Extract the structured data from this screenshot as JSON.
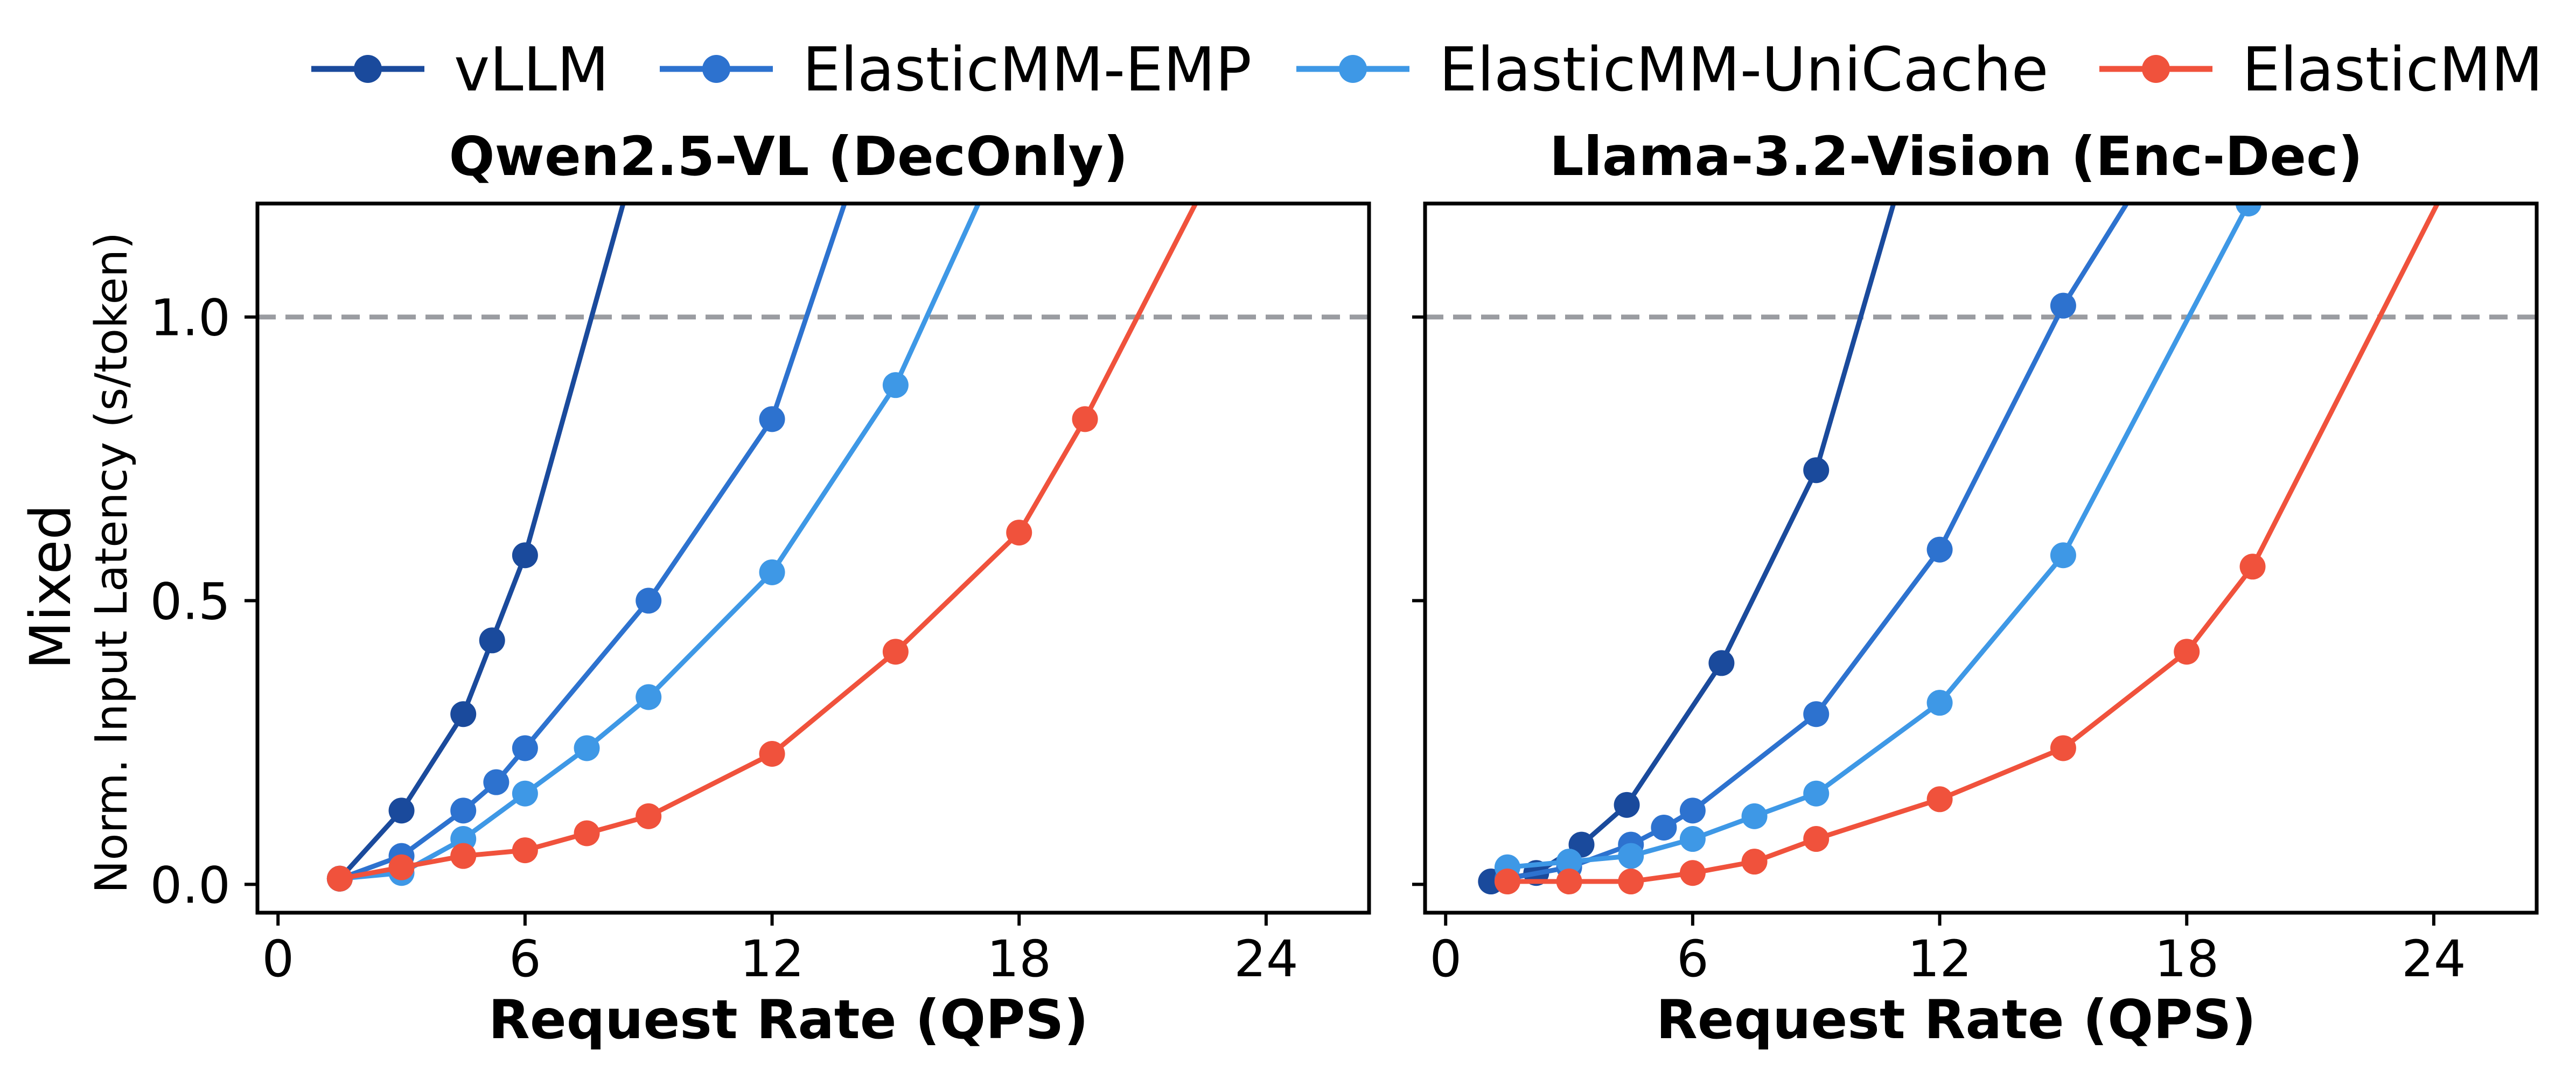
{
  "legend": [
    {
      "name": "vLLM",
      "color": "#1a4a9c"
    },
    {
      "name": "ElasticMM-EMP",
      "color": "#2d72cf"
    },
    {
      "name": "ElasticMM-UniCache",
      "color": "#3e98e6"
    },
    {
      "name": "ElasticMM",
      "color": "#f0523c"
    }
  ],
  "ylabel": {
    "main": "Mixed",
    "sub": "Norm. Input Latency (s/token)"
  },
  "chart_data": [
    {
      "type": "line",
      "title": "Qwen2.5-VL (DecOnly)",
      "xlabel": "Request Rate (QPS)",
      "ylabel": "Norm. Input Latency (s/token)",
      "xlim": [
        -0.5,
        26.5
      ],
      "ylim": [
        -0.05,
        1.2
      ],
      "xticks": [
        0,
        6,
        12,
        18,
        24
      ],
      "yticks": [
        0.0,
        0.5,
        1.0
      ],
      "ytick_labels": [
        "0.0",
        "0.5",
        "1.0"
      ],
      "reference_line": 1.0,
      "series": [
        {
          "name": "vLLM",
          "color": "#1a4a9c",
          "x": [
            1.5,
            3,
            4.5,
            5.2,
            6
          ],
          "y": [
            0.01,
            0.13,
            0.3,
            0.43,
            0.58
          ],
          "extend_to": [
            8.5,
            1.23
          ]
        },
        {
          "name": "ElasticMM-EMP",
          "color": "#2d72cf",
          "x": [
            1.5,
            3,
            4.5,
            5.3,
            6,
            9,
            12
          ],
          "y": [
            0.01,
            0.05,
            0.13,
            0.18,
            0.24,
            0.5,
            0.82
          ],
          "extend_to": [
            13.9,
            1.23
          ]
        },
        {
          "name": "ElasticMM-UniCache",
          "color": "#3e98e6",
          "x": [
            1.5,
            3,
            4.5,
            6,
            7.5,
            9,
            12,
            15
          ],
          "y": [
            0.01,
            0.02,
            0.08,
            0.16,
            0.24,
            0.33,
            0.55,
            0.88
          ],
          "extend_to": [
            17.2,
            1.23
          ]
        },
        {
          "name": "ElasticMM",
          "color": "#f0523c",
          "x": [
            1.5,
            3,
            4.5,
            6,
            7.5,
            9,
            12,
            15,
            18,
            19.6
          ],
          "y": [
            0.01,
            0.03,
            0.05,
            0.06,
            0.09,
            0.12,
            0.23,
            0.41,
            0.62,
            0.82
          ],
          "extend_to": [
            22.5,
            1.23
          ]
        }
      ]
    },
    {
      "type": "line",
      "title": "Llama-3.2-Vision (Enc-Dec)",
      "xlabel": "Request Rate (QPS)",
      "ylabel": "",
      "xlim": [
        -0.5,
        26.5
      ],
      "ylim": [
        -0.05,
        1.2
      ],
      "xticks": [
        0,
        6,
        12,
        18,
        24
      ],
      "yticks": [
        0.0,
        0.5,
        1.0
      ],
      "ytick_labels": [
        "",
        "",
        ""
      ],
      "reference_line": 1.0,
      "series": [
        {
          "name": "vLLM",
          "color": "#1a4a9c",
          "x": [
            1.1,
            2.2,
            3.3,
            4.4,
            6.7,
            9
          ],
          "y": [
            0.005,
            0.02,
            0.07,
            0.14,
            0.39,
            0.73
          ],
          "extend_to": [
            11.0,
            1.23
          ]
        },
        {
          "name": "ElasticMM-EMP",
          "color": "#2d72cf",
          "x": [
            1.5,
            3,
            4.5,
            5.3,
            6,
            9,
            12,
            15
          ],
          "y": [
            0.01,
            0.03,
            0.07,
            0.1,
            0.13,
            0.3,
            0.59,
            1.02
          ],
          "extend_to": [
            16.8,
            1.23
          ]
        },
        {
          "name": "ElasticMM-UniCache",
          "color": "#3e98e6",
          "x": [
            1.5,
            3,
            4.5,
            6,
            7.5,
            9,
            12,
            15,
            19.5
          ],
          "y": [
            0.03,
            0.04,
            0.05,
            0.08,
            0.12,
            0.16,
            0.32,
            0.58,
            1.2
          ],
          "extend_to": [
            19.8,
            1.23
          ]
        },
        {
          "name": "ElasticMM",
          "color": "#f0523c",
          "x": [
            1.5,
            3,
            4.5,
            6,
            7.5,
            9,
            12,
            15,
            18,
            19.6
          ],
          "y": [
            0.005,
            0.005,
            0.005,
            0.02,
            0.04,
            0.08,
            0.15,
            0.24,
            0.41,
            0.56
          ],
          "extend_to": [
            24.3,
            1.23
          ]
        }
      ]
    }
  ]
}
